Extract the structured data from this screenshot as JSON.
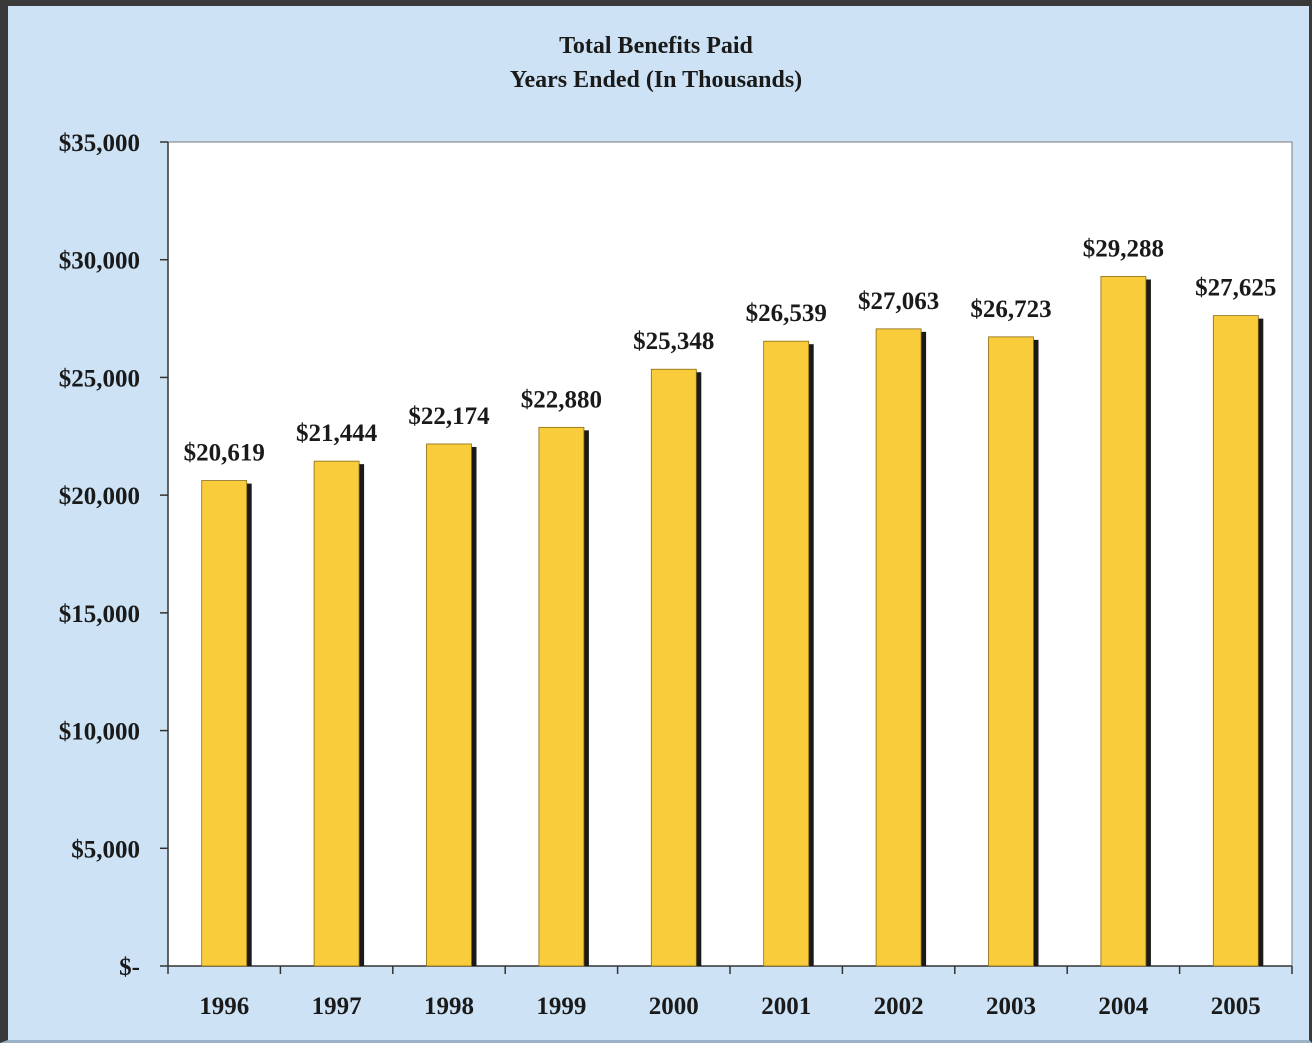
{
  "chart_data": {
    "type": "bar",
    "title": "Total Benefits Paid",
    "subtitle": "Years Ended  (In Thousands)",
    "xlabel": "",
    "ylabel": "",
    "categories": [
      "1996",
      "1997",
      "1998",
      "1999",
      "2000",
      "2001",
      "2002",
      "2003",
      "2004",
      "2005"
    ],
    "values": [
      20619,
      21444,
      22174,
      22880,
      25348,
      26539,
      27063,
      26723,
      29288,
      27625
    ],
    "data_labels": [
      "$20,619",
      "$21,444",
      "$22,174",
      "$22,880",
      "$25,348",
      "$26,539",
      "$27,063",
      "$26,723",
      "$29,288",
      "$27,625"
    ],
    "ylim": [
      0,
      35000
    ],
    "yticks": [
      0,
      5000,
      10000,
      15000,
      20000,
      25000,
      30000,
      35000
    ],
    "ytick_labels": [
      "$-",
      "$5,000",
      "$10,000",
      "$15,000",
      "$20,000",
      "$25,000",
      "$30,000",
      "$35,000"
    ],
    "grid": false,
    "legend": "none",
    "colors": {
      "bar": "#f9cc3c",
      "bar_shadow": "#1a1a1a",
      "plot_background": "#ffffff",
      "frame_background": "#cde3f5"
    }
  }
}
